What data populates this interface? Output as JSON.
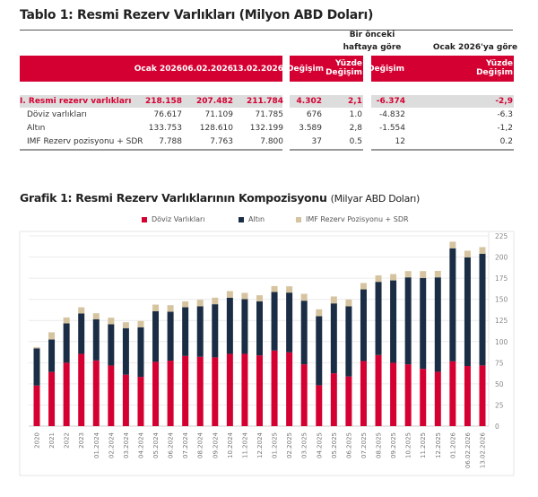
{
  "table": {
    "title": "Tablo 1: Resmi Rezerv Varlıkları (Milyon ABD Doları)",
    "group_headers": [
      "Bir önceki\nhaftaya göre",
      "Ocak 2026'ya göre"
    ],
    "columns": [
      "Ocak 2026",
      "06.02.2026",
      "13.02.2026",
      "Değişim",
      "Yüzde Değişim",
      "Değişim",
      "Yüzde Değişim"
    ],
    "rows": [
      {
        "label": "I. Resmi rezerv varlıkları",
        "values": [
          "218.158",
          "207.482",
          "211.784",
          "4.302",
          "2,1",
          "-6.374",
          "-2,9"
        ],
        "highlight": true
      },
      {
        "label": "Döviz varlıkları",
        "values": [
          "76.617",
          "71.109",
          "71.785",
          "676",
          "1.0",
          "-4.832",
          "-6.3"
        ]
      },
      {
        "label": "Altın",
        "values": [
          "133.753",
          "128.610",
          "132.199",
          "3.589",
          "2,8",
          "-1.554",
          "-1,2"
        ]
      },
      {
        "label": "IMF Rezerv pozisyonu + SDR",
        "values": [
          "7.788",
          "7.763",
          "7.800",
          "37",
          "0.5",
          "12",
          "0.2"
        ]
      }
    ],
    "accent": "#d50032"
  },
  "chart_data": {
    "type": "bar",
    "stacked": true,
    "title": "Grafik 1: Resmi Rezerv Varlıklarının Kompozisyonu",
    "subtitle": "(Milyar ABD Doları)",
    "categories": [
      "2020",
      "2021",
      "2022",
      "2023",
      "01.2024",
      "02.2024",
      "03.2024",
      "04.2024",
      "05.2024",
      "06.2024",
      "07.2024",
      "08.2024",
      "09.2024",
      "10.2024",
      "11.2024",
      "12.2024",
      "01.2025",
      "02.2025",
      "03.2025",
      "04.2025",
      "05.2025",
      "06.2025",
      "07.2025",
      "08.2025",
      "09.2025",
      "10.2025",
      "11.2025",
      "12.2025",
      "01.2026",
      "06.02.2026",
      "13.02.2026"
    ],
    "series": [
      {
        "name": "Döviz Varlıkları",
        "color": "#d50032",
        "values": [
          48,
          64,
          75,
          85.5,
          77.7,
          71.7,
          60.8,
          58.3,
          76,
          77.4,
          83,
          82,
          81.3,
          85.5,
          85.5,
          83.7,
          89.4,
          87.3,
          73.1,
          48.4,
          62.5,
          58.7,
          77,
          84.1,
          74.9,
          73.1,
          67.8,
          64.3,
          76.6,
          71.1,
          71.8
        ]
      },
      {
        "name": "Altın",
        "color": "#1b2d45",
        "values": [
          44,
          38.5,
          46.6,
          47.7,
          48.8,
          48.8,
          55.1,
          58.7,
          60,
          57.9,
          57.6,
          59.7,
          62.9,
          66.5,
          64.7,
          64,
          69.3,
          70.7,
          75.3,
          81.6,
          82.7,
          83,
          84.8,
          86.6,
          97.5,
          102.9,
          107.5,
          111.7,
          133.8,
          128.6,
          132.2
        ]
      },
      {
        "name": "IMF Rezerv Pozisyonu + SDR",
        "color": "#d6c4a0",
        "values": [
          1.5,
          8.5,
          7,
          7.4,
          7,
          7.8,
          7,
          7.4,
          7.8,
          7.8,
          7,
          7.8,
          7.8,
          7.8,
          7.4,
          7.1,
          7,
          7.4,
          8.1,
          8.2,
          8.2,
          8.1,
          7.5,
          7.7,
          7.5,
          7.4,
          8.1,
          7.7,
          7.8,
          7.8,
          7.8
        ]
      }
    ],
    "yticks": [
      "0",
      "25",
      "50",
      "75",
      "100",
      "125",
      "150",
      "175",
      "200",
      "225"
    ],
    "ylim": [
      0,
      225
    ],
    "grid": true,
    "legend": "top"
  }
}
